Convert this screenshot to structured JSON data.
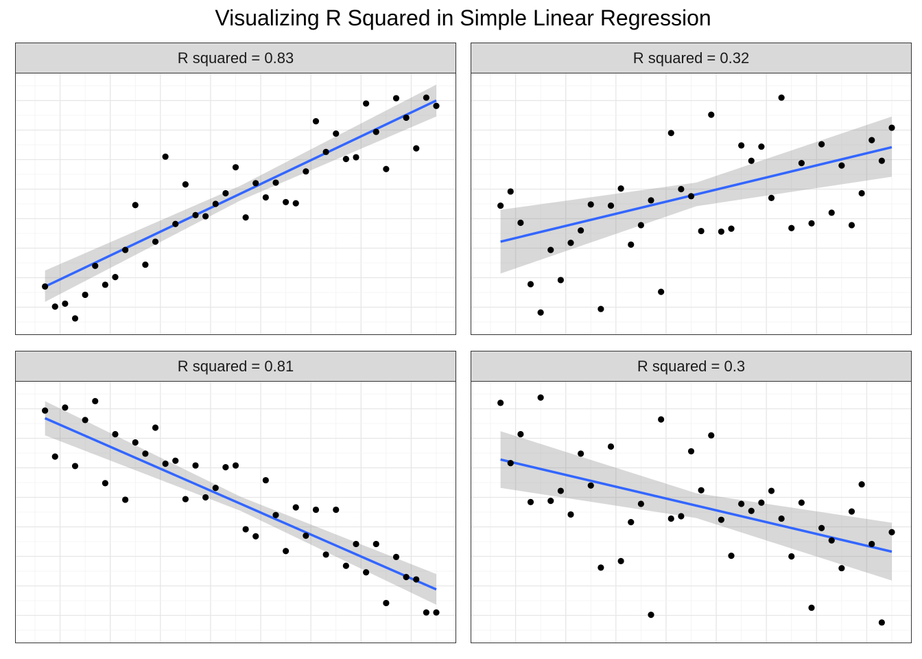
{
  "title": "Visualizing R Squared in Simple Linear Regression",
  "chart_data": [
    {
      "type": "scatter",
      "strip_label": "R squared = 0.83",
      "xlim": [
        0.0,
        40.0
      ],
      "ylim": [
        0.0,
        40.0
      ],
      "fit": {
        "x0": 1,
        "y0": 6.0,
        "x1": 40,
        "y1": 37.5
      },
      "band": [
        {
          "x": 1,
          "lo": 3.4,
          "hi": 8.7
        },
        {
          "x": 20.5,
          "lo": 20.6,
          "hi": 23.1
        },
        {
          "x": 40,
          "lo": 34.8,
          "hi": 40.2
        }
      ],
      "x": [
        1,
        2,
        3,
        4,
        5,
        6,
        7,
        8,
        9,
        10,
        11,
        12,
        13,
        14,
        15,
        16,
        17,
        18,
        19,
        20,
        21,
        22,
        23,
        24,
        25,
        26,
        27,
        28,
        29,
        30,
        31,
        32,
        33,
        34,
        35,
        36,
        37,
        38,
        39,
        40
      ],
      "y": [
        6.0,
        2.6,
        3.1,
        0.6,
        4.6,
        9.5,
        6.3,
        7.6,
        12.2,
        19.8,
        9.7,
        13.6,
        28.0,
        16.6,
        23.3,
        18.1,
        17.9,
        20.0,
        21.8,
        26.2,
        17.7,
        23.5,
        21.1,
        23.6,
        20.3,
        20.1,
        25.5,
        34.0,
        28.8,
        31.9,
        27.6,
        27.9,
        37.0,
        32.2,
        25.9,
        37.9,
        34.6,
        29.4,
        38.0,
        36.6
      ]
    },
    {
      "type": "scatter",
      "strip_label": "R squared = 0.32",
      "xlim": [
        0.0,
        40.0
      ],
      "ylim": [
        0.0,
        40.0
      ],
      "fit": {
        "x0": 1,
        "y0": 13.6,
        "x1": 40,
        "y1": 29.6
      },
      "band": [
        {
          "x": 1,
          "lo": 8.2,
          "hi": 19.0
        },
        {
          "x": 20.5,
          "lo": 19.6,
          "hi": 23.6
        },
        {
          "x": 40,
          "lo": 24.6,
          "hi": 34.8
        }
      ],
      "x": [
        1,
        2,
        3,
        4,
        5,
        6,
        7,
        8,
        9,
        10,
        11,
        12,
        13,
        14,
        15,
        16,
        17,
        18,
        19,
        20,
        21,
        22,
        23,
        24,
        25,
        26,
        27,
        28,
        29,
        30,
        31,
        32,
        33,
        34,
        35,
        36,
        37,
        38,
        39,
        40
      ],
      "y": [
        19.7,
        22.1,
        16.8,
        6.4,
        1.6,
        12.2,
        7.1,
        13.4,
        15.5,
        19.9,
        2.2,
        19.7,
        22.6,
        13.1,
        16.4,
        20.6,
        5.1,
        32.0,
        22.5,
        21.3,
        15.4,
        35.1,
        15.3,
        15.8,
        29.9,
        27.3,
        29.7,
        21.0,
        38.0,
        15.9,
        26.9,
        16.7,
        30.1,
        18.5,
        26.5,
        16.4,
        21.8,
        30.8,
        27.3,
        32.9
      ]
    },
    {
      "type": "scatter",
      "strip_label": "R squared = 0.81",
      "xlim": [
        0.0,
        40.0
      ],
      "ylim": [
        0.0,
        40.0
      ],
      "fit": {
        "x0": 1,
        "y0": 35.9,
        "x1": 40,
        "y1": 6.9
      },
      "band": [
        {
          "x": 1,
          "lo": 33.0,
          "hi": 38.8
        },
        {
          "x": 20.5,
          "lo": 20.2,
          "hi": 22.6
        },
        {
          "x": 40,
          "lo": 4.3,
          "hi": 9.5
        }
      ],
      "x": [
        1,
        2,
        3,
        4,
        5,
        6,
        7,
        8,
        9,
        10,
        11,
        12,
        13,
        14,
        15,
        16,
        17,
        18,
        19,
        20,
        21,
        22,
        23,
        24,
        25,
        26,
        27,
        28,
        29,
        30,
        31,
        32,
        33,
        34,
        35,
        36,
        37,
        38,
        39,
        40
      ],
      "y": [
        37.2,
        29.4,
        37.7,
        27.8,
        35.6,
        38.8,
        24.9,
        33.2,
        22.1,
        31.8,
        29.9,
        34.3,
        28.2,
        28.7,
        22.2,
        27.9,
        22.5,
        24.1,
        27.6,
        27.9,
        17.1,
        15.9,
        25.4,
        19.5,
        13.4,
        20.8,
        16.0,
        20.4,
        12.8,
        20.4,
        10.9,
        14.6,
        9.8,
        14.6,
        4.6,
        12.4,
        9.0,
        8.6,
        3.0,
        3.0
      ]
    },
    {
      "type": "scatter",
      "strip_label": "R squared = 0.3",
      "xlim": [
        0.0,
        40.0
      ],
      "ylim": [
        0.0,
        40.0
      ],
      "fit": {
        "x0": 1,
        "y0": 28.9,
        "x1": 40,
        "y1": 13.3
      },
      "band": [
        {
          "x": 1,
          "lo": 24.1,
          "hi": 33.7
        },
        {
          "x": 20.5,
          "lo": 19.0,
          "hi": 23.2
        },
        {
          "x": 40,
          "lo": 8.4,
          "hi": 18.2
        }
      ],
      "x": [
        1,
        2,
        3,
        4,
        5,
        6,
        7,
        8,
        9,
        10,
        11,
        12,
        13,
        14,
        15,
        16,
        17,
        18,
        19,
        20,
        21,
        22,
        23,
        24,
        25,
        26,
        27,
        28,
        29,
        30,
        31,
        32,
        33,
        34,
        35,
        36,
        37,
        38,
        39,
        40
      ],
      "y": [
        38.5,
        28.3,
        33.2,
        21.7,
        39.4,
        21.9,
        23.6,
        19.6,
        29.9,
        24.5,
        10.6,
        31.1,
        11.7,
        18.3,
        21.4,
        2.6,
        35.7,
        18.9,
        19.3,
        30.3,
        23.7,
        33.0,
        18.7,
        12.6,
        21.4,
        20.2,
        21.6,
        23.6,
        18.9,
        12.5,
        21.6,
        3.8,
        17.3,
        15.2,
        10.5,
        20.1,
        24.7,
        14.6,
        1.3,
        16.6
      ]
    }
  ]
}
